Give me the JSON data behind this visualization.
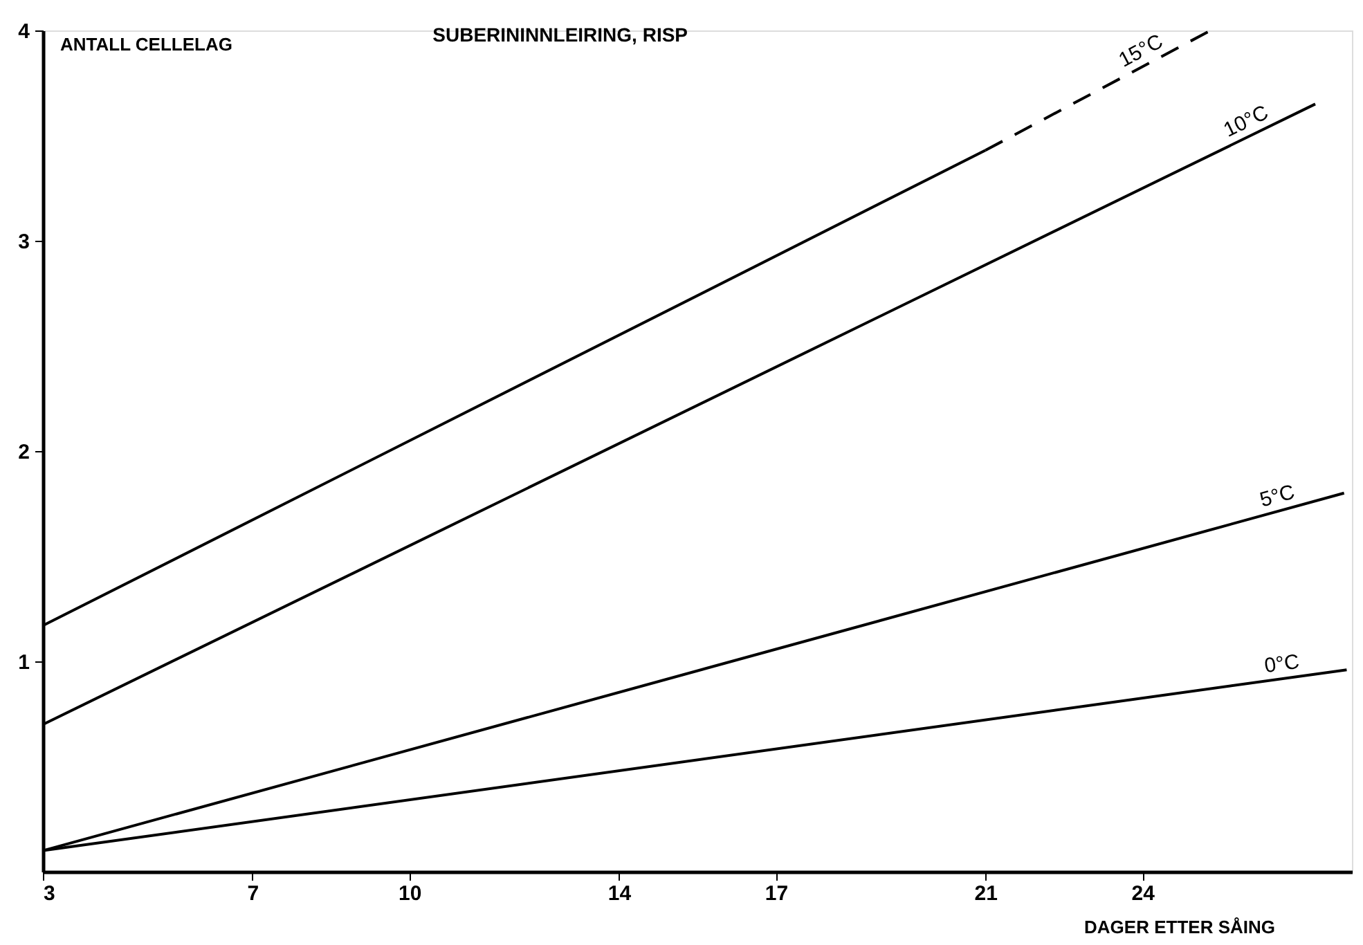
{
  "chart_data": {
    "type": "line",
    "title": "SUBERININNLEIRING, RISP",
    "xlabel": "DAGER ETTER SÅING",
    "ylabel": "ANTALL CELLELAG",
    "xlim": [
      3,
      28
    ],
    "xticks": [
      3,
      7,
      10,
      14,
      17,
      21,
      24
    ],
    "ylim": [
      0,
      4
    ],
    "yticks": [
      1,
      2,
      3,
      4
    ],
    "grid": false,
    "legend": false,
    "marker": "none",
    "series": [
      {
        "color": "#000000",
        "line_style": "solid",
        "x": [
          3,
          21
        ],
        "values": [
          1.17,
          3.43
        ]
      },
      {
        "name": "15°C",
        "color": "#000000",
        "line_style": "dashed",
        "x": [
          21,
          25.3
        ],
        "values": [
          3.43,
          4.0
        ]
      },
      {
        "name": "10°C",
        "color": "#000000",
        "line_style": "solid",
        "x": [
          3,
          27.3
        ],
        "values": [
          0.7,
          3.65
        ]
      },
      {
        "name": "5°C",
        "color": "#000000",
        "line_style": "solid",
        "x": [
          3,
          27.85
        ],
        "values": [
          0.1,
          1.8
        ]
      },
      {
        "name": "0°C",
        "color": "#000000",
        "line_style": "solid",
        "x": [
          3,
          27.9
        ],
        "values": [
          0.1,
          0.96
        ]
      }
    ]
  }
}
